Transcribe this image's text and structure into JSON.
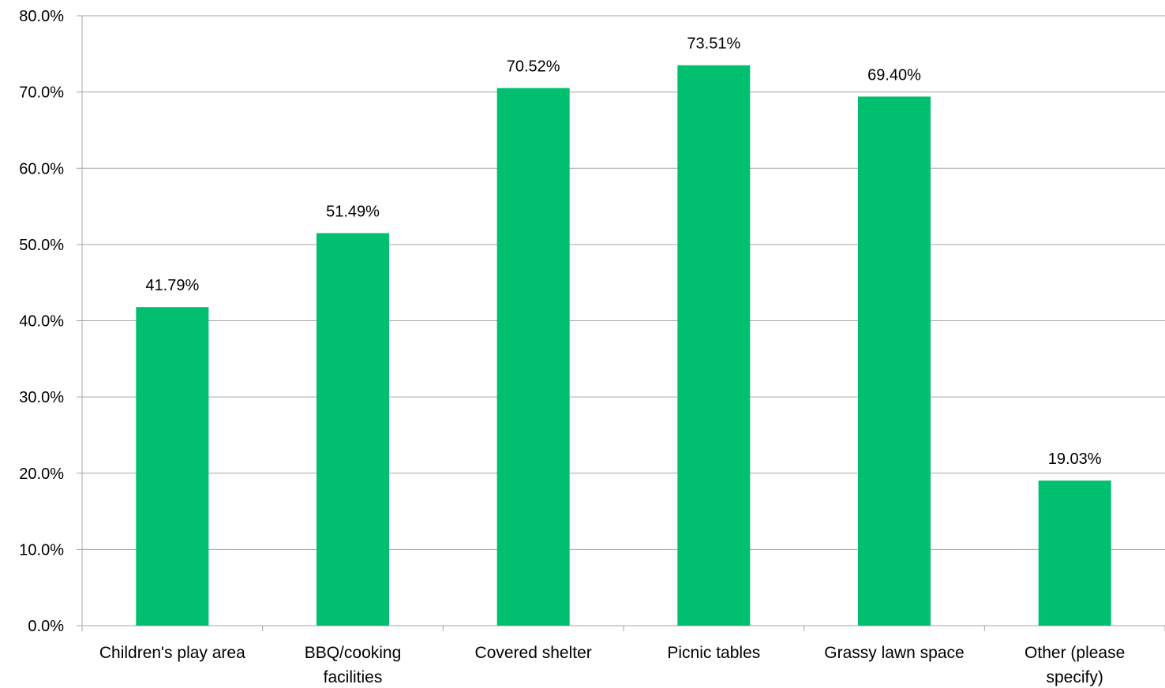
{
  "chart_data": {
    "type": "bar",
    "categories": [
      [
        "Children's play area"
      ],
      [
        "BBQ/cooking",
        "facilities"
      ],
      [
        "Covered shelter"
      ],
      [
        "Picnic tables"
      ],
      [
        "Grassy lawn space"
      ],
      [
        "Other (please",
        "specify)"
      ]
    ],
    "values": [
      41.79,
      51.49,
      70.52,
      73.51,
      69.4,
      19.03
    ],
    "data_labels": [
      "41.79%",
      "51.49%",
      "70.52%",
      "73.51%",
      "69.40%",
      "19.03%"
    ],
    "y_ticks": [
      "0.0%",
      "10.0%",
      "20.0%",
      "30.0%",
      "40.0%",
      "50.0%",
      "60.0%",
      "70.0%",
      "80.0%"
    ],
    "ylim": [
      0,
      80
    ],
    "grid": true,
    "legend": "none",
    "title": "",
    "xlabel": "",
    "ylabel": "",
    "colors": {
      "bar": "#00BF6F",
      "grid": "#A6A6A6",
      "axis": "#A6A6A6",
      "text": "#000000"
    }
  }
}
